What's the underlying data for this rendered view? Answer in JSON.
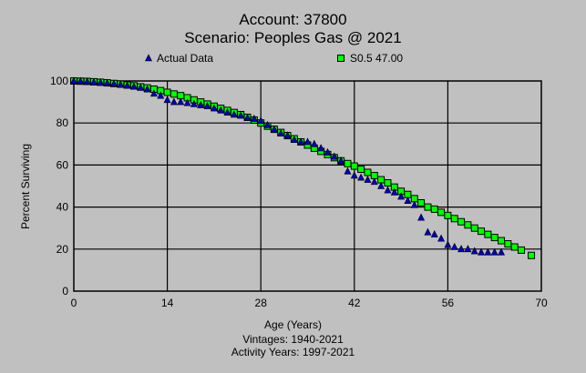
{
  "chart_data": {
    "type": "scatter",
    "title": "Account: 37800",
    "subtitle": "Scenario: Peoples Gas @ 2021",
    "xlabel": "Age (Years)",
    "ylabel": "Percent Surviving",
    "notes": [
      "Vintages: 1940-2021",
      "Activity Years: 1997-2021"
    ],
    "xlim": [
      0,
      70
    ],
    "ylim": [
      0,
      100
    ],
    "xticks": [
      "0",
      "14",
      "28",
      "42",
      "56",
      "70"
    ],
    "yticks": [
      "0",
      "20",
      "40",
      "60",
      "80",
      "100"
    ],
    "grid": true,
    "legend_placement": "top",
    "series": [
      {
        "name": "Actual Data",
        "marker": "triangle",
        "color": "#0000c0",
        "x": [
          0,
          1,
          2,
          3,
          4,
          5,
          6,
          7,
          8,
          9,
          10,
          11,
          12,
          13,
          14,
          15,
          16,
          17,
          18,
          19,
          20,
          21,
          22,
          23,
          24,
          25,
          26,
          27,
          28,
          29,
          30,
          31,
          32,
          33,
          34,
          35,
          36,
          37,
          38,
          39,
          40,
          41,
          42,
          43,
          44,
          45,
          46,
          47,
          48,
          49,
          50,
          51,
          52,
          53,
          54,
          55,
          56,
          57,
          58,
          59,
          60,
          61,
          62,
          63,
          64
        ],
        "y": [
          100,
          99.9,
          99.7,
          99.5,
          99.3,
          99,
          98.7,
          98.3,
          97.8,
          97.3,
          96.8,
          96,
          94,
          93,
          91,
          90,
          90,
          89.5,
          89,
          88.5,
          88,
          87,
          86,
          85,
          84,
          83.5,
          82.5,
          82,
          81,
          79,
          77,
          75,
          74,
          72,
          71,
          71,
          70,
          68,
          66,
          64,
          62,
          57,
          55,
          54,
          53,
          52,
          50,
          48,
          47,
          45,
          43,
          41,
          35,
          28,
          27,
          25,
          22,
          21,
          20,
          20,
          19,
          18.5,
          18.5,
          18.5,
          18.5
        ]
      },
      {
        "name": "S0.5 47.00",
        "marker": "square",
        "color": "#00ff00",
        "x": [
          0,
          1,
          2,
          3,
          4,
          5,
          6,
          7,
          8,
          9,
          10,
          11,
          12,
          13,
          14,
          15,
          16,
          17,
          18,
          19,
          20,
          21,
          22,
          23,
          24,
          25,
          26,
          27,
          28,
          29,
          30,
          31,
          32,
          33,
          34,
          35,
          36,
          37,
          38,
          39,
          40,
          41,
          42,
          43,
          44,
          45,
          46,
          47,
          48,
          49,
          50,
          51,
          52,
          53,
          54,
          55,
          56,
          57,
          58,
          59,
          60,
          61,
          62,
          63,
          64,
          65,
          66,
          67,
          68.5
        ],
        "y": [
          100,
          99.9,
          99.8,
          99.6,
          99.4,
          99.1,
          98.8,
          98.5,
          98.1,
          97.7,
          97.2,
          96.7,
          96.1,
          95.4,
          94.6,
          93.8,
          93,
          92,
          91,
          90,
          89,
          88,
          87,
          86,
          85,
          84,
          82.7,
          81.4,
          80,
          78.5,
          77,
          75.5,
          74,
          72.5,
          71,
          69.5,
          68,
          66.5,
          65,
          63.5,
          62,
          60.7,
          59.5,
          58,
          56.5,
          55,
          53,
          51.5,
          49.5,
          47.5,
          46,
          44,
          42,
          40,
          39,
          37.5,
          36,
          34.5,
          33,
          31.5,
          30,
          28.5,
          27,
          25.5,
          24,
          22.5,
          21,
          19.5,
          17
        ]
      }
    ]
  }
}
